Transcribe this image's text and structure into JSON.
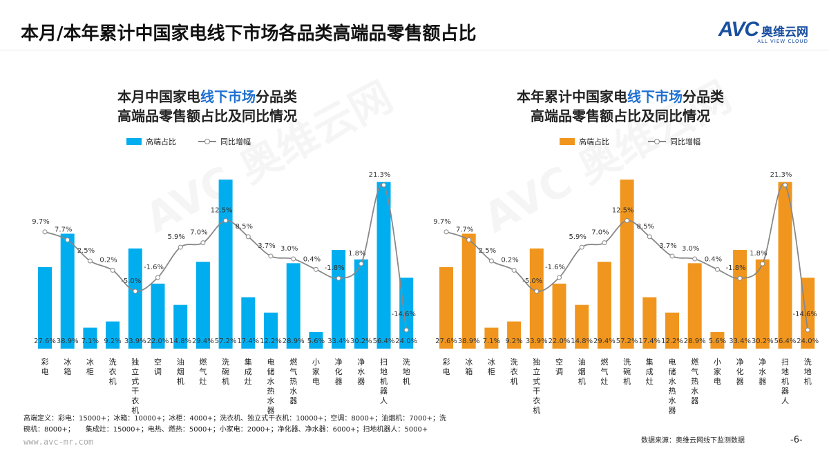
{
  "header": {
    "title": "本月/本年累计中国家电线下市场各品类高端品零售额占比"
  },
  "logo": {
    "mark": "AVC",
    "name_cn": "奥维云网",
    "name_en": "ALL VIEW CLOUD",
    "color": "#1a4fa0"
  },
  "watermark": "AVC 奥维云网",
  "footer": {
    "definition_line1": "高端定义：彩电：15000+；冰箱：10000+；冰柜：4000+；洗衣机、独立式干衣机：10000+；空调：8000+；油烟机：7000+；洗",
    "definition_line2": "碗机：8000+；     集成灶：15000+；电热、燃热：5000+；小家电：2000+；净化器、净水器：6000+；扫地机器人：5000+",
    "url": "www.avc-mr.com",
    "source": "数据来源：奥维云网线下监测数据",
    "page": "-6-"
  },
  "chart_data": [
    {
      "type": "bar+line",
      "title_parts": [
        "本月中国家电",
        "线下市场",
        "分品类"
      ],
      "title_line2": "高端品零售额占比及同比情况",
      "highlight_color": "#1e6fd1",
      "bar_color": "#00aeef",
      "line_color": "#888888",
      "legend": [
        "高端占比",
        "同比增幅"
      ],
      "legend_placement": "top",
      "grid": false,
      "categories": [
        "彩电",
        "冰箱",
        "冰柜",
        "洗衣机",
        "独立式干衣机",
        "空调",
        "油烟机",
        "燃气灶",
        "洗碗机",
        "集成灶",
        "电储水热水器",
        "燃气热水器",
        "小家电",
        "净化器",
        "净水器",
        "扫地机器人",
        "洗地机"
      ],
      "series": [
        {
          "name": "高端占比",
          "type": "bar",
          "values": [
            27.6,
            38.9,
            7.1,
            9.2,
            33.9,
            22.0,
            14.8,
            29.4,
            57.2,
            17.4,
            12.2,
            28.9,
            5.6,
            33.4,
            30.2,
            56.4,
            24.0
          ]
        },
        {
          "name": "同比增幅",
          "type": "line",
          "values": [
            9.7,
            7.7,
            2.5,
            0.2,
            -5.0,
            -1.6,
            5.9,
            7.0,
            12.5,
            8.5,
            3.7,
            3.0,
            0.4,
            -1.8,
            1.8,
            21.3,
            -14.6
          ]
        }
      ]
    },
    {
      "type": "bar+line",
      "title_parts": [
        "本年累计中国家电",
        "线下市场",
        "分品类"
      ],
      "title_line2": "高端品零售额占比及同比情况",
      "highlight_color": "#1e6fd1",
      "bar_color": "#f0961e",
      "line_color": "#888888",
      "legend": [
        "高端占比",
        "同比增幅"
      ],
      "legend_placement": "top",
      "grid": false,
      "categories": [
        "彩电",
        "冰箱",
        "冰柜",
        "洗衣机",
        "独立式干衣机",
        "空调",
        "油烟机",
        "燃气灶",
        "洗碗机",
        "集成灶",
        "电储水热水器",
        "燃气热水器",
        "小家电",
        "净化器",
        "净水器",
        "扫地机器人",
        "洗地机"
      ],
      "series": [
        {
          "name": "高端占比",
          "type": "bar",
          "values": [
            27.6,
            38.9,
            7.1,
            9.2,
            33.9,
            22.0,
            14.8,
            29.4,
            57.2,
            17.4,
            12.2,
            28.9,
            5.6,
            33.4,
            30.2,
            56.4,
            24.0
          ]
        },
        {
          "name": "同比增幅",
          "type": "line",
          "values": [
            9.7,
            7.7,
            2.5,
            0.2,
            -5.0,
            -1.6,
            5.9,
            7.0,
            12.5,
            8.5,
            3.7,
            3.0,
            0.4,
            -1.8,
            1.8,
            21.3,
            -14.6
          ]
        }
      ]
    }
  ]
}
